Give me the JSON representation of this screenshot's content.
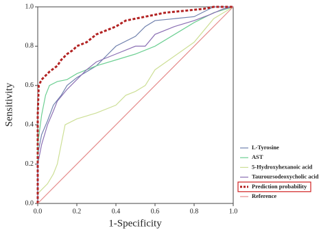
{
  "chart_data": {
    "type": "line",
    "xlabel": "1-Specificity",
    "ylabel": "Sensitivity",
    "xlim": [
      0,
      1
    ],
    "ylim": [
      0,
      1
    ],
    "xticks": [
      {
        "value": 0,
        "label": "0.0"
      },
      0.2,
      0.4,
      0.6,
      0.8,
      {
        "value": 1,
        "label": "1.0"
      }
    ],
    "yticks": [
      {
        "value": 0,
        "label": "0.0"
      },
      0.2,
      0.4,
      0.6,
      0.8,
      {
        "value": 1,
        "label": "1.0"
      }
    ],
    "legend": "right",
    "series": [
      {
        "name": "L-Tyrosine",
        "color": "#6f80ad",
        "style": "solid",
        "x": [
          0,
          0,
          0.02,
          0.05,
          0.08,
          0.12,
          0.15,
          0.2,
          0.3,
          0.35,
          0.4,
          0.5,
          0.55,
          0.6,
          0.8,
          0.9,
          1
        ],
        "values": [
          0,
          0.25,
          0.35,
          0.42,
          0.5,
          0.55,
          0.6,
          0.64,
          0.7,
          0.75,
          0.8,
          0.85,
          0.9,
          0.93,
          0.95,
          1,
          1
        ]
      },
      {
        "name": "AST",
        "color": "#6ccf92",
        "style": "solid",
        "x": [
          0,
          0,
          0.02,
          0.04,
          0.06,
          0.1,
          0.15,
          0.2,
          0.3,
          0.4,
          0.5,
          0.6,
          0.7,
          0.8,
          0.9,
          1
        ],
        "values": [
          0,
          0.3,
          0.45,
          0.55,
          0.6,
          0.62,
          0.63,
          0.66,
          0.7,
          0.73,
          0.76,
          0.8,
          0.86,
          0.92,
          0.97,
          1
        ]
      },
      {
        "name": "5-Hydroxyhexanoic acid",
        "color": "#cddf96",
        "style": "solid",
        "x": [
          0,
          0,
          0.05,
          0.08,
          0.1,
          0.12,
          0.14,
          0.2,
          0.3,
          0.4,
          0.45,
          0.5,
          0.55,
          0.6,
          0.7,
          0.8,
          0.85,
          0.9,
          1
        ],
        "values": [
          0,
          0.05,
          0.1,
          0.15,
          0.2,
          0.3,
          0.4,
          0.43,
          0.46,
          0.5,
          0.55,
          0.57,
          0.6,
          0.68,
          0.75,
          0.82,
          0.88,
          0.94,
          1
        ]
      },
      {
        "name": "Tauroursodeoxycholic acid",
        "color": "#8a6fb3",
        "style": "solid",
        "x": [
          0,
          0,
          0.02,
          0.05,
          0.08,
          0.1,
          0.15,
          0.2,
          0.25,
          0.3,
          0.4,
          0.5,
          0.55,
          0.6,
          0.7,
          0.8,
          0.88,
          0.95,
          1
        ],
        "values": [
          0,
          0.2,
          0.3,
          0.4,
          0.47,
          0.52,
          0.58,
          0.63,
          0.68,
          0.72,
          0.76,
          0.8,
          0.8,
          0.86,
          0.9,
          0.93,
          0.96,
          0.99,
          1
        ]
      },
      {
        "name": "Prediction probability",
        "color": "#b22222",
        "style": "dashed",
        "boxed": true,
        "x": [
          0,
          0,
          0.005,
          0.02,
          0.04,
          0.06,
          0.1,
          0.12,
          0.15,
          0.18,
          0.2,
          0.25,
          0.3,
          0.35,
          0.4,
          0.45,
          0.55,
          0.65,
          0.75,
          0.85,
          0.9,
          1
        ],
        "values": [
          0,
          0.45,
          0.6,
          0.63,
          0.65,
          0.67,
          0.7,
          0.73,
          0.76,
          0.78,
          0.8,
          0.82,
          0.86,
          0.88,
          0.9,
          0.93,
          0.95,
          0.97,
          0.98,
          0.99,
          1,
          1
        ]
      },
      {
        "name": "Reference",
        "color": "#e58a8a",
        "style": "solid",
        "x": [
          0,
          1
        ],
        "values": [
          0,
          1
        ]
      }
    ]
  }
}
